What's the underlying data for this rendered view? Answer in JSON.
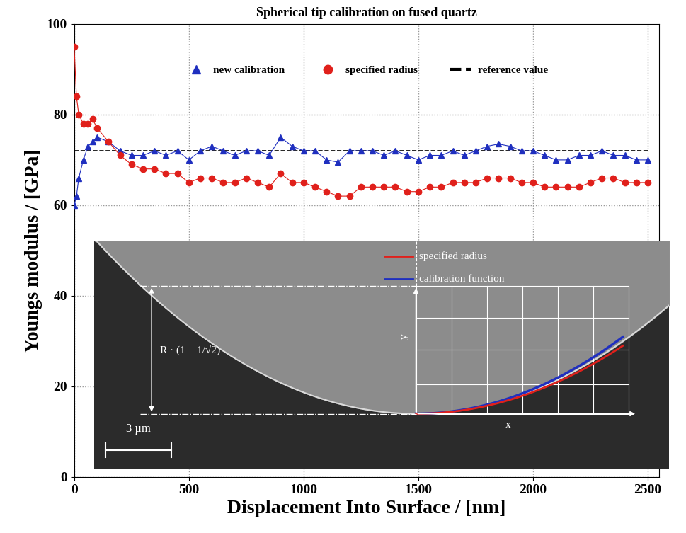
{
  "chart_data": {
    "type": "line",
    "title": "Spherical tip calibration on fused quartz",
    "x_label": "Displacement Into Surface / [nm]",
    "y_label": "Youngs modulus / [GPa]",
    "x": [
      0,
      10,
      20,
      40,
      60,
      80,
      100,
      150,
      200,
      250,
      300,
      350,
      400,
      450,
      500,
      550,
      600,
      650,
      700,
      750,
      800,
      850,
      900,
      950,
      1000,
      1050,
      1100,
      1150,
      1200,
      1250,
      1300,
      1350,
      1400,
      1450,
      1500,
      1550,
      1600,
      1650,
      1700,
      1750,
      1800,
      1850,
      1900,
      1950,
      2000,
      2050,
      2100,
      2150,
      2200,
      2250,
      2300,
      2350,
      2400,
      2450,
      2500
    ],
    "series": [
      {
        "name": "new calibration",
        "color": "#1f2fbf",
        "marker": "triangle",
        "line_style": "solid",
        "values": [
          60,
          62,
          66,
          70,
          73,
          74,
          75,
          74,
          72,
          71,
          71,
          72,
          71,
          72,
          70,
          72,
          73,
          72,
          71,
          72,
          72,
          71,
          75,
          73,
          72,
          72,
          70,
          69.5,
          72,
          72,
          72,
          71,
          72,
          71,
          70,
          71,
          71,
          72,
          71,
          72,
          73,
          73.5,
          73,
          72,
          72,
          71,
          70,
          70,
          71,
          71,
          72,
          71,
          71,
          70,
          70
        ]
      },
      {
        "name": "specified radius",
        "color": "#e0201b",
        "marker": "circle",
        "line_style": "solid",
        "values": [
          95,
          84,
          80,
          78,
          78,
          79,
          77,
          74,
          71,
          69,
          68,
          68,
          67,
          67,
          65,
          66,
          66,
          65,
          65,
          66,
          65,
          64,
          67,
          65,
          65,
          64,
          63,
          62,
          62,
          64,
          64,
          64,
          64,
          63,
          63,
          64,
          64,
          65,
          65,
          65,
          66,
          66,
          66,
          65,
          65,
          64,
          64,
          64,
          64,
          65,
          66,
          66,
          65,
          65,
          65
        ]
      },
      {
        "name": "reference value",
        "color": "#000000",
        "marker": "none",
        "line_style": "dashed",
        "values": [
          72,
          72,
          72,
          72,
          72,
          72,
          72,
          72,
          72,
          72,
          72,
          72,
          72,
          72,
          72,
          72,
          72,
          72,
          72,
          72,
          72,
          72,
          72,
          72,
          72,
          72,
          72,
          72,
          72,
          72,
          72,
          72,
          72,
          72,
          72,
          72,
          72,
          72,
          72,
          72,
          72,
          72,
          72,
          72,
          72,
          72,
          72,
          72,
          72,
          72,
          72,
          72,
          72,
          72,
          72
        ]
      }
    ],
    "xlim": [
      0,
      2550
    ],
    "xticks": [
      0,
      500,
      1000,
      1500,
      2000,
      2500
    ],
    "ylim": [
      0,
      100
    ],
    "yticks": [
      0,
      20,
      40,
      60,
      80,
      100
    ],
    "grid": true,
    "legend": "upper center",
    "annotations": [
      "specified radius",
      "calibration function",
      "3 µm",
      "R · (1 − 1/√2)",
      "y",
      "x"
    ]
  }
}
